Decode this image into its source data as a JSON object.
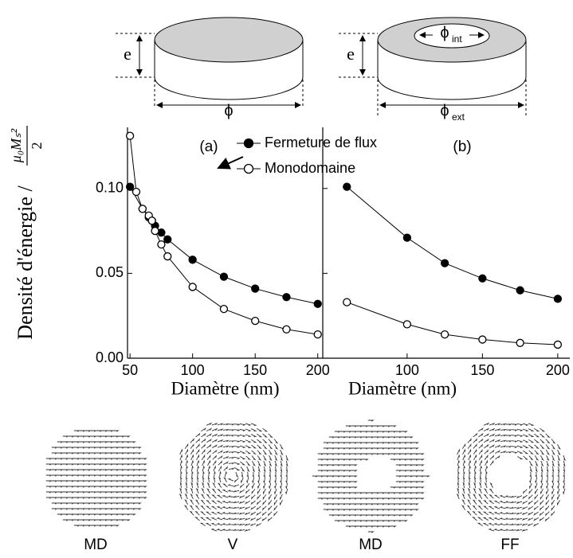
{
  "chart_data": [
    {
      "type": "line",
      "panel_label": "(a)",
      "x_label": "Diamètre (nm)",
      "y_label": "Densité d'énergie /",
      "y_label_numerator": "μ₀Mₛ²",
      "y_label_denominator": "2",
      "xlim": [
        48,
        204
      ],
      "xticks": [
        50,
        100,
        150,
        200
      ],
      "ylim": [
        0,
        0.136
      ],
      "yticks": [
        {
          "value": 0,
          "label": "0.00"
        },
        0.05,
        {
          "value": 0.1,
          "label": "0.10"
        }
      ],
      "series": [
        {
          "name": "Fermeture de flux",
          "color": "#000000",
          "marker_fill": "#000000",
          "x": [
            50,
            60,
            65,
            67.5,
            70,
            75,
            80,
            100,
            125,
            150,
            175,
            200
          ],
          "values": [
            0.101,
            0.088,
            0.083,
            0.081,
            0.078,
            0.074,
            0.07,
            0.058,
            0.048,
            0.041,
            0.036,
            0.032
          ]
        },
        {
          "name": "Monodomaine",
          "color": "#000000",
          "marker_fill": "#ffffff",
          "x": [
            50,
            55,
            60,
            65,
            67.5,
            70,
            75,
            80,
            100,
            125,
            150,
            175,
            200
          ],
          "values": [
            0.131,
            0.098,
            0.088,
            0.084,
            0.081,
            0.075,
            0.067,
            0.06,
            0.042,
            0.029,
            0.022,
            0.017,
            0.014
          ]
        }
      ]
    },
    {
      "type": "line",
      "panel_label": "(b)",
      "x_label": "Diamètre (nm)",
      "xlim": [
        44,
        208
      ],
      "xticks": [
        100,
        150,
        200
      ],
      "ylim": [
        0,
        0.136
      ],
      "yticks": [
        0,
        0.05,
        0.1
      ],
      "series": [
        {
          "color": "#000000",
          "marker_fill": "#000000",
          "x": [
            60,
            100,
            125,
            150,
            175,
            200
          ],
          "values": [
            0.101,
            0.071,
            0.056,
            0.047,
            0.04,
            0.035
          ]
        },
        {
          "color": "#000000",
          "marker_fill": "#ffffff",
          "x": [
            60,
            100,
            125,
            150,
            175,
            200
          ],
          "values": [
            0.033,
            0.02,
            0.014,
            0.011,
            0.009,
            0.008
          ]
        }
      ]
    }
  ],
  "schematics": {
    "disk": {
      "thickness": "e",
      "diameter": "ϕ"
    },
    "ring": {
      "thickness": "e",
      "inner_symbol": "ϕ",
      "inner_sub": "int",
      "outer_symbol": "ϕ",
      "outer_sub": "ext"
    }
  },
  "vector_maps": [
    "MD",
    "V",
    "MD",
    "FF"
  ]
}
